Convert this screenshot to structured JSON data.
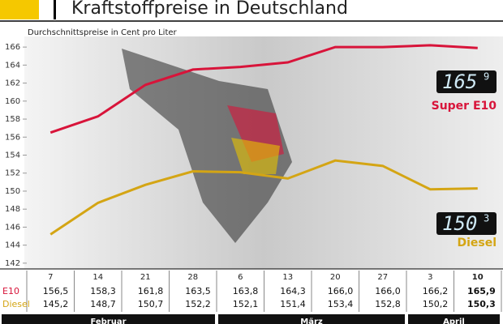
{
  "header": {
    "title": "Kraftstoffpreise in Deutschland"
  },
  "chart_data": {
    "type": "line",
    "subtitle": "Durchschnittspreise in Cent pro Liter",
    "categories": [
      "7",
      "14",
      "21",
      "28",
      "6",
      "13",
      "20",
      "27",
      "3",
      "10"
    ],
    "months": [
      "Februar",
      "März",
      "April"
    ],
    "series": [
      {
        "name": "Super E10",
        "row_label": "E10",
        "color": "#d8143a",
        "values": [
          156.5,
          158.3,
          161.8,
          163.5,
          163.8,
          164.3,
          166.0,
          166.0,
          166.2,
          165.9
        ],
        "value_labels": [
          "156,5",
          "158,3",
          "161,8",
          "163,5",
          "163,8",
          "164,3",
          "166,0",
          "166,0",
          "166,2",
          "165,9"
        ],
        "display": {
          "main": "165",
          "decimal": "9"
        }
      },
      {
        "name": "Diesel",
        "row_label": "Diesel",
        "color": "#d4a514",
        "values": [
          145.2,
          148.7,
          150.7,
          152.2,
          152.1,
          151.4,
          153.4,
          152.8,
          150.2,
          150.3
        ],
        "value_labels": [
          "145,2",
          "148,7",
          "150,7",
          "152,2",
          "152,1",
          "151,4",
          "153,4",
          "152,8",
          "150,2",
          "150,3"
        ],
        "display": {
          "main": "150",
          "decimal": "3"
        }
      }
    ],
    "ylim": [
      141,
      167
    ],
    "yticks": [
      142,
      144,
      146,
      148,
      150,
      152,
      154,
      156,
      158,
      160,
      162,
      164,
      166
    ],
    "grid": false
  }
}
